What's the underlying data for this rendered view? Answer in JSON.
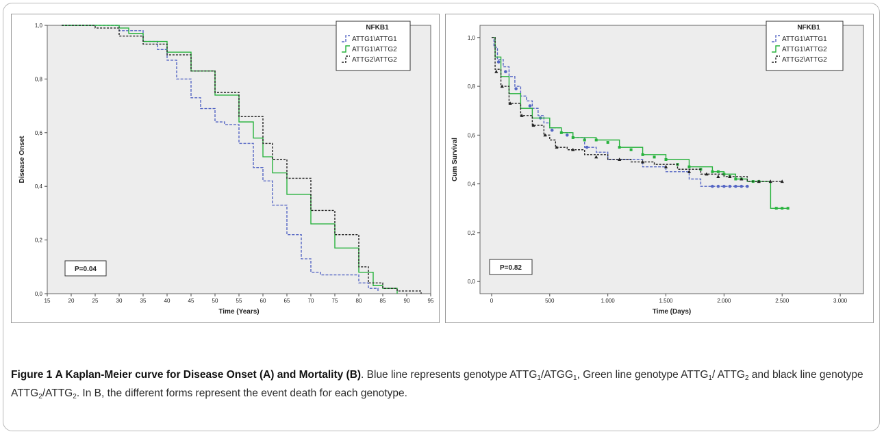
{
  "colors": {
    "blue": "#5566c4",
    "green": "#27b23c",
    "black": "#222222",
    "plot_bg": "#ededed"
  },
  "chart_data": [
    {
      "type": "line",
      "panel": "A",
      "xlabel": "Time (Years)",
      "ylabel": "Disease Onset",
      "x_ticks": [
        "15",
        "20",
        "25",
        "30",
        "35",
        "40",
        "45",
        "50",
        "55",
        "60",
        "65",
        "70",
        "75",
        "80",
        "85",
        "90",
        "95"
      ],
      "y_ticks": [
        "0,0",
        "0,2",
        "0,4",
        "0,6",
        "0,8",
        "1,0"
      ],
      "xlim": [
        15,
        95
      ],
      "ylim": [
        0,
        1
      ],
      "legend_title": "NFKB1",
      "legend_position": "top-right",
      "p_value": "P=0.04",
      "series": [
        {
          "name": "ATTG1\\ATTG1",
          "color": "#5566c4",
          "dash": "4,2",
          "points": [
            [
              18,
              1.0
            ],
            [
              29,
              1.0
            ],
            [
              30,
              0.98
            ],
            [
              35,
              0.94
            ],
            [
              38,
              0.91
            ],
            [
              40,
              0.87
            ],
            [
              42,
              0.8
            ],
            [
              45,
              0.73
            ],
            [
              47,
              0.69
            ],
            [
              50,
              0.64
            ],
            [
              52,
              0.63
            ],
            [
              55,
              0.56
            ],
            [
              58,
              0.47
            ],
            [
              60,
              0.42
            ],
            [
              62,
              0.33
            ],
            [
              65,
              0.22
            ],
            [
              68,
              0.13
            ],
            [
              70,
              0.08
            ],
            [
              72,
              0.07
            ],
            [
              76,
              0.07
            ],
            [
              80,
              0.04
            ],
            [
              82,
              0.02
            ],
            [
              84,
              0.01
            ]
          ]
        },
        {
          "name": "ATTG1\\ATTG2",
          "color": "#27b23c",
          "dash": "",
          "points": [
            [
              18,
              1.0
            ],
            [
              30,
              0.99
            ],
            [
              32,
              0.97
            ],
            [
              35,
              0.94
            ],
            [
              40,
              0.9
            ],
            [
              45,
              0.83
            ],
            [
              50,
              0.74
            ],
            [
              55,
              0.64
            ],
            [
              58,
              0.58
            ],
            [
              60,
              0.51
            ],
            [
              62,
              0.45
            ],
            [
              65,
              0.37
            ],
            [
              70,
              0.26
            ],
            [
              75,
              0.17
            ],
            [
              80,
              0.08
            ],
            [
              83,
              0.03
            ],
            [
              85,
              0.02
            ],
            [
              88,
              0.0
            ]
          ]
        },
        {
          "name": "ATTG2\\ATTG2",
          "color": "#222222",
          "dash": "3,2",
          "points": [
            [
              18,
              1.0
            ],
            [
              25,
              0.99
            ],
            [
              30,
              0.96
            ],
            [
              35,
              0.93
            ],
            [
              40,
              0.89
            ],
            [
              45,
              0.83
            ],
            [
              50,
              0.75
            ],
            [
              55,
              0.66
            ],
            [
              60,
              0.56
            ],
            [
              62,
              0.5
            ],
            [
              65,
              0.43
            ],
            [
              70,
              0.31
            ],
            [
              75,
              0.22
            ],
            [
              80,
              0.1
            ],
            [
              82,
              0.04
            ],
            [
              85,
              0.02
            ],
            [
              88,
              0.01
            ],
            [
              93,
              0.0
            ]
          ]
        }
      ]
    },
    {
      "type": "line",
      "panel": "B",
      "xlabel": "Time (Days)",
      "ylabel": "Cum Survival",
      "x_ticks": [
        "0",
        "500",
        "1.000",
        "1.500",
        "2.000",
        "2.500",
        "3.000"
      ],
      "y_ticks": [
        "0,0",
        "0,2",
        "0,4",
        "0,6",
        "0,8",
        "1,0"
      ],
      "xlim": [
        -100,
        3200
      ],
      "ylim": [
        -0.05,
        1.05
      ],
      "legend_title": "NFKB1",
      "legend_position": "top-right",
      "p_value": "P=0.82",
      "series": [
        {
          "name": "ATTG1\\ATTG1",
          "color": "#5566c4",
          "dash": "4,2",
          "marker": "circle",
          "points": [
            [
              0,
              1.0
            ],
            [
              20,
              0.96
            ],
            [
              50,
              0.91
            ],
            [
              100,
              0.88
            ],
            [
              150,
              0.84
            ],
            [
              200,
              0.8
            ],
            [
              250,
              0.76
            ],
            [
              300,
              0.74
            ],
            [
              350,
              0.71
            ],
            [
              400,
              0.68
            ],
            [
              450,
              0.65
            ],
            [
              500,
              0.63
            ],
            [
              600,
              0.61
            ],
            [
              700,
              0.59
            ],
            [
              800,
              0.55
            ],
            [
              900,
              0.53
            ],
            [
              1000,
              0.5
            ],
            [
              1200,
              0.5
            ],
            [
              1300,
              0.47
            ],
            [
              1500,
              0.45
            ],
            [
              1700,
              0.42
            ],
            [
              1800,
              0.39
            ],
            [
              2000,
              0.39
            ],
            [
              2100,
              0.39
            ],
            [
              2200,
              0.39
            ]
          ],
          "censored": [
            [
              60,
              0.9
            ],
            [
              120,
              0.86
            ],
            [
              210,
              0.79
            ],
            [
              330,
              0.72
            ],
            [
              420,
              0.67
            ],
            [
              520,
              0.62
            ],
            [
              650,
              0.6
            ],
            [
              820,
              0.55
            ],
            [
              1900,
              0.39
            ],
            [
              1950,
              0.39
            ],
            [
              2000,
              0.39
            ],
            [
              2050,
              0.39
            ],
            [
              2100,
              0.39
            ],
            [
              2150,
              0.39
            ],
            [
              2200,
              0.39
            ]
          ]
        },
        {
          "name": "ATTG1\\ATTG2",
          "color": "#27b23c",
          "dash": "",
          "marker": "square",
          "points": [
            [
              0,
              1.0
            ],
            [
              30,
              0.92
            ],
            [
              80,
              0.84
            ],
            [
              150,
              0.77
            ],
            [
              250,
              0.71
            ],
            [
              350,
              0.67
            ],
            [
              500,
              0.63
            ],
            [
              600,
              0.61
            ],
            [
              700,
              0.59
            ],
            [
              900,
              0.58
            ],
            [
              1100,
              0.55
            ],
            [
              1300,
              0.52
            ],
            [
              1500,
              0.5
            ],
            [
              1700,
              0.47
            ],
            [
              1900,
              0.45
            ],
            [
              2000,
              0.44
            ],
            [
              2100,
              0.42
            ],
            [
              2200,
              0.41
            ],
            [
              2400,
              0.41
            ],
            [
              2401,
              0.3
            ],
            [
              2550,
              0.3
            ]
          ],
          "censored": [
            [
              600,
              0.61
            ],
            [
              700,
              0.59
            ],
            [
              800,
              0.58
            ],
            [
              900,
              0.58
            ],
            [
              1000,
              0.57
            ],
            [
              1100,
              0.55
            ],
            [
              1200,
              0.54
            ],
            [
              1300,
              0.52
            ],
            [
              1400,
              0.51
            ],
            [
              1500,
              0.5
            ],
            [
              1600,
              0.48
            ],
            [
              1700,
              0.47
            ],
            [
              1800,
              0.46
            ],
            [
              1900,
              0.45
            ],
            [
              1950,
              0.45
            ],
            [
              2000,
              0.44
            ],
            [
              2050,
              0.43
            ],
            [
              2100,
              0.42
            ],
            [
              2150,
              0.42
            ],
            [
              2250,
              0.41
            ],
            [
              2300,
              0.41
            ],
            [
              2450,
              0.3
            ],
            [
              2500,
              0.3
            ],
            [
              2550,
              0.3
            ]
          ]
        },
        {
          "name": "ATTG2\\ATTG2",
          "color": "#222222",
          "dash": "3,2",
          "marker": "triangle",
          "points": [
            [
              0,
              1.0
            ],
            [
              30,
              0.87
            ],
            [
              80,
              0.8
            ],
            [
              150,
              0.73
            ],
            [
              250,
              0.68
            ],
            [
              350,
              0.64
            ],
            [
              450,
              0.6
            ],
            [
              500,
              0.58
            ],
            [
              550,
              0.55
            ],
            [
              650,
              0.54
            ],
            [
              800,
              0.52
            ],
            [
              1000,
              0.5
            ],
            [
              1200,
              0.49
            ],
            [
              1400,
              0.48
            ],
            [
              1600,
              0.46
            ],
            [
              1800,
              0.44
            ],
            [
              2000,
              0.43
            ],
            [
              2200,
              0.41
            ],
            [
              2500,
              0.41
            ]
          ],
          "censored": [
            [
              40,
              0.86
            ],
            [
              90,
              0.8
            ],
            [
              160,
              0.73
            ],
            [
              260,
              0.68
            ],
            [
              360,
              0.64
            ],
            [
              460,
              0.6
            ],
            [
              560,
              0.55
            ],
            [
              700,
              0.54
            ],
            [
              900,
              0.51
            ],
            [
              1100,
              0.5
            ],
            [
              1300,
              0.49
            ],
            [
              1500,
              0.47
            ],
            [
              1700,
              0.45
            ],
            [
              1850,
              0.44
            ],
            [
              1950,
              0.43
            ],
            [
              2050,
              0.43
            ],
            [
              2150,
              0.42
            ],
            [
              2300,
              0.41
            ],
            [
              2400,
              0.41
            ],
            [
              2500,
              0.41
            ]
          ]
        }
      ]
    }
  ],
  "caption": {
    "label": "Figure 1",
    "title": "A Kaplan-Meier curve for Disease Onset (A) and Mortality (B)",
    "text_1": ". Blue line represents genotype ATTG",
    "sub_1": "1",
    "text_2": "/ATGG",
    "sub_2": "1",
    "text_3": ", Green line genotype ATTG",
    "sub_3": "1",
    "text_4": "/ ATTG",
    "sub_4": "2",
    "text_5": " and black line genotype ATTG",
    "sub_5": "2",
    "text_6": "/ATTG",
    "sub_6": "2",
    "text_7": ". In B, the different forms represent the event death for each genotype."
  }
}
